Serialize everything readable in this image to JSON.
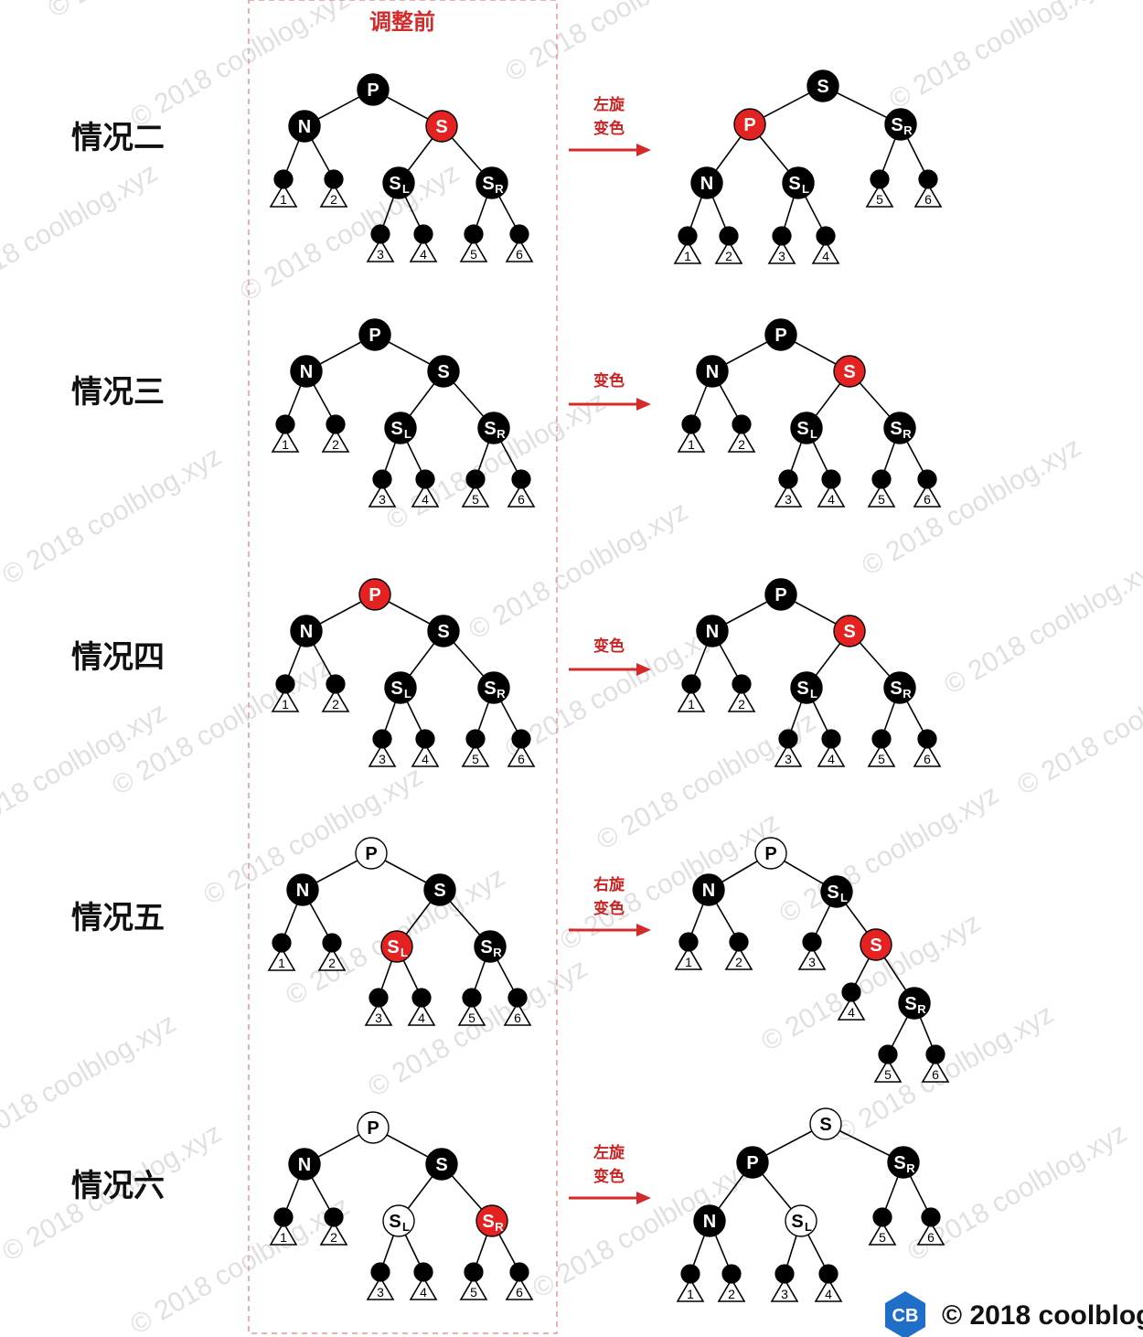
{
  "header": {
    "label": "调整前"
  },
  "watermark": "© 2018 coolblog.xyz",
  "footer": {
    "logo": "CB",
    "text": "© 2018 coolblog"
  },
  "colors": {
    "black": "#000000",
    "red": "#e52222",
    "white": "#ffffff",
    "arrow": "#d42a2a",
    "dashed": "#d99"
  },
  "cases": [
    {
      "label": "情况二",
      "action": [
        "左旋",
        "变色"
      ],
      "before": {
        "nodes": [
          {
            "id": "P",
            "text": "P",
            "color": "black"
          },
          {
            "id": "N",
            "text": "N",
            "color": "black"
          },
          {
            "id": "S",
            "text": "S",
            "color": "red"
          },
          {
            "id": "a",
            "color": "black",
            "leaf": "1"
          },
          {
            "id": "b",
            "color": "black",
            "leaf": "2"
          },
          {
            "id": "SL",
            "text": "S",
            "sub": "L",
            "color": "black"
          },
          {
            "id": "SR",
            "text": "S",
            "sub": "R",
            "color": "black"
          },
          {
            "id": "c",
            "color": "black",
            "leaf": "3"
          },
          {
            "id": "d",
            "color": "black",
            "leaf": "4"
          },
          {
            "id": "e",
            "color": "black",
            "leaf": "5"
          },
          {
            "id": "f",
            "color": "black",
            "leaf": "6"
          }
        ]
      },
      "after": {
        "nodes": [
          {
            "id": "S",
            "text": "S",
            "color": "black"
          },
          {
            "id": "P",
            "text": "P",
            "color": "red"
          },
          {
            "id": "SR",
            "text": "S",
            "sub": "R",
            "color": "black"
          },
          {
            "id": "N",
            "text": "N",
            "color": "black"
          },
          {
            "id": "SL",
            "text": "S",
            "sub": "L",
            "color": "black"
          },
          {
            "id": "e",
            "color": "black",
            "leaf": "5"
          },
          {
            "id": "f",
            "color": "black",
            "leaf": "6"
          },
          {
            "id": "a",
            "color": "black",
            "leaf": "1"
          },
          {
            "id": "b",
            "color": "black",
            "leaf": "2"
          },
          {
            "id": "c",
            "color": "black",
            "leaf": "3"
          },
          {
            "id": "d",
            "color": "black",
            "leaf": "4"
          }
        ]
      }
    },
    {
      "label": "情况三",
      "action": [
        "变色"
      ],
      "before": {
        "nodes": [
          {
            "id": "P",
            "text": "P",
            "color": "black"
          },
          {
            "id": "N",
            "text": "N",
            "color": "black"
          },
          {
            "id": "S",
            "text": "S",
            "color": "black"
          },
          {
            "id": "a",
            "color": "black",
            "leaf": "1"
          },
          {
            "id": "b",
            "color": "black",
            "leaf": "2"
          },
          {
            "id": "SL",
            "text": "S",
            "sub": "L",
            "color": "black"
          },
          {
            "id": "SR",
            "text": "S",
            "sub": "R",
            "color": "black"
          },
          {
            "id": "c",
            "color": "black",
            "leaf": "3"
          },
          {
            "id": "d",
            "color": "black",
            "leaf": "4"
          },
          {
            "id": "e",
            "color": "black",
            "leaf": "5"
          },
          {
            "id": "f",
            "color": "black",
            "leaf": "6"
          }
        ]
      },
      "after": {
        "nodes": [
          {
            "id": "P",
            "text": "P",
            "color": "black"
          },
          {
            "id": "N",
            "text": "N",
            "color": "black"
          },
          {
            "id": "S",
            "text": "S",
            "color": "red"
          },
          {
            "id": "a",
            "color": "black",
            "leaf": "1"
          },
          {
            "id": "b",
            "color": "black",
            "leaf": "2"
          },
          {
            "id": "SL",
            "text": "S",
            "sub": "L",
            "color": "black"
          },
          {
            "id": "SR",
            "text": "S",
            "sub": "R",
            "color": "black"
          },
          {
            "id": "c",
            "color": "black",
            "leaf": "3"
          },
          {
            "id": "d",
            "color": "black",
            "leaf": "4"
          },
          {
            "id": "e",
            "color": "black",
            "leaf": "5"
          },
          {
            "id": "f",
            "color": "black",
            "leaf": "6"
          }
        ]
      }
    },
    {
      "label": "情况四",
      "action": [
        "变色"
      ],
      "before": {
        "nodes": [
          {
            "id": "P",
            "text": "P",
            "color": "red"
          },
          {
            "id": "N",
            "text": "N",
            "color": "black"
          },
          {
            "id": "S",
            "text": "S",
            "color": "black"
          },
          {
            "id": "a",
            "color": "black",
            "leaf": "1"
          },
          {
            "id": "b",
            "color": "black",
            "leaf": "2"
          },
          {
            "id": "SL",
            "text": "S",
            "sub": "L",
            "color": "black"
          },
          {
            "id": "SR",
            "text": "S",
            "sub": "R",
            "color": "black"
          },
          {
            "id": "c",
            "color": "black",
            "leaf": "3"
          },
          {
            "id": "d",
            "color": "black",
            "leaf": "4"
          },
          {
            "id": "e",
            "color": "black",
            "leaf": "5"
          },
          {
            "id": "f",
            "color": "black",
            "leaf": "6"
          }
        ]
      },
      "after": {
        "nodes": [
          {
            "id": "P",
            "text": "P",
            "color": "black"
          },
          {
            "id": "N",
            "text": "N",
            "color": "black"
          },
          {
            "id": "S",
            "text": "S",
            "color": "red"
          },
          {
            "id": "a",
            "color": "black",
            "leaf": "1"
          },
          {
            "id": "b",
            "color": "black",
            "leaf": "2"
          },
          {
            "id": "SL",
            "text": "S",
            "sub": "L",
            "color": "black"
          },
          {
            "id": "SR",
            "text": "S",
            "sub": "R",
            "color": "black"
          },
          {
            "id": "c",
            "color": "black",
            "leaf": "3"
          },
          {
            "id": "d",
            "color": "black",
            "leaf": "4"
          },
          {
            "id": "e",
            "color": "black",
            "leaf": "5"
          },
          {
            "id": "f",
            "color": "black",
            "leaf": "6"
          }
        ]
      }
    },
    {
      "label": "情况五",
      "action": [
        "右旋",
        "变色"
      ],
      "before": {
        "nodes": [
          {
            "id": "P",
            "text": "P",
            "color": "white"
          },
          {
            "id": "N",
            "text": "N",
            "color": "black"
          },
          {
            "id": "S",
            "text": "S",
            "color": "black"
          },
          {
            "id": "a",
            "color": "black",
            "leaf": "1"
          },
          {
            "id": "b",
            "color": "black",
            "leaf": "2"
          },
          {
            "id": "SL",
            "text": "S",
            "sub": "L",
            "color": "red"
          },
          {
            "id": "SR",
            "text": "S",
            "sub": "R",
            "color": "black"
          },
          {
            "id": "c",
            "color": "black",
            "leaf": "3"
          },
          {
            "id": "d",
            "color": "black",
            "leaf": "4"
          },
          {
            "id": "e",
            "color": "black",
            "leaf": "5"
          },
          {
            "id": "f",
            "color": "black",
            "leaf": "6"
          }
        ]
      },
      "after": {
        "nodes": [
          {
            "id": "P",
            "text": "P",
            "color": "white"
          },
          {
            "id": "N",
            "text": "N",
            "color": "black"
          },
          {
            "id": "SL",
            "text": "S",
            "sub": "L",
            "color": "black"
          },
          {
            "id": "a",
            "color": "black",
            "leaf": "1"
          },
          {
            "id": "b",
            "color": "black",
            "leaf": "2"
          },
          {
            "id": "c",
            "color": "black",
            "leaf": "3"
          },
          {
            "id": "S",
            "text": "S",
            "color": "red"
          },
          {
            "id": "d",
            "color": "black",
            "leaf": "4"
          },
          {
            "id": "SR",
            "text": "S",
            "sub": "R",
            "color": "black"
          },
          {
            "id": "e",
            "color": "black",
            "leaf": "5"
          },
          {
            "id": "f",
            "color": "black",
            "leaf": "6"
          }
        ]
      }
    },
    {
      "label": "情况六",
      "action": [
        "左旋",
        "变色"
      ],
      "before": {
        "nodes": [
          {
            "id": "P",
            "text": "P",
            "color": "white"
          },
          {
            "id": "N",
            "text": "N",
            "color": "black"
          },
          {
            "id": "S",
            "text": "S",
            "color": "black"
          },
          {
            "id": "a",
            "color": "black",
            "leaf": "1"
          },
          {
            "id": "b",
            "color": "black",
            "leaf": "2"
          },
          {
            "id": "SL",
            "text": "S",
            "sub": "L",
            "color": "white"
          },
          {
            "id": "SR",
            "text": "S",
            "sub": "R",
            "color": "red"
          },
          {
            "id": "c",
            "color": "black",
            "leaf": "3"
          },
          {
            "id": "d",
            "color": "black",
            "leaf": "4"
          },
          {
            "id": "e",
            "color": "black",
            "leaf": "5"
          },
          {
            "id": "f",
            "color": "black",
            "leaf": "6"
          }
        ]
      },
      "after": {
        "nodes": [
          {
            "id": "S",
            "text": "S",
            "color": "white"
          },
          {
            "id": "P",
            "text": "P",
            "color": "black"
          },
          {
            "id": "SR",
            "text": "S",
            "sub": "R",
            "color": "black"
          },
          {
            "id": "N",
            "text": "N",
            "color": "black"
          },
          {
            "id": "SL",
            "text": "S",
            "sub": "L",
            "color": "white"
          },
          {
            "id": "e",
            "color": "black",
            "leaf": "5"
          },
          {
            "id": "f",
            "color": "black",
            "leaf": "6"
          },
          {
            "id": "a",
            "color": "black",
            "leaf": "1"
          },
          {
            "id": "b",
            "color": "black",
            "leaf": "2"
          },
          {
            "id": "c",
            "color": "black",
            "leaf": "3"
          },
          {
            "id": "d",
            "color": "black",
            "leaf": "4"
          }
        ]
      }
    }
  ]
}
